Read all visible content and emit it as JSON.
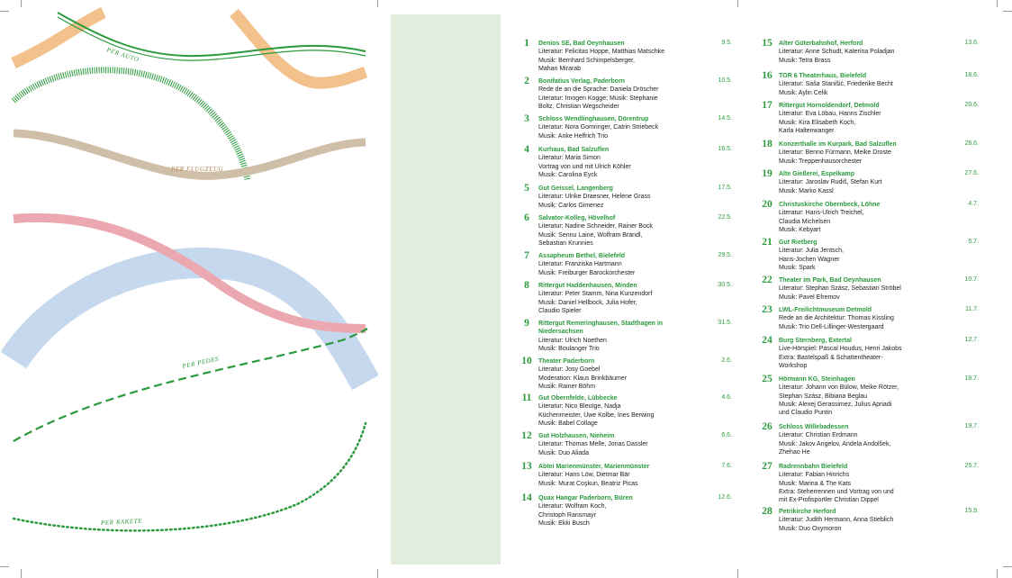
{
  "colors": {
    "accent_green": "#2a9a3c",
    "orange": "#f2c18c",
    "taupe": "#cfbfa8",
    "pink": "#eba8b0",
    "blue": "#c6d8ee",
    "panel": "#e3eddd"
  },
  "routes": {
    "auto": "PER AUTO",
    "flugzeug": "PER FLUGZEUG",
    "pedes": "PER PEDES",
    "rakete": "PER RAKETE"
  },
  "events": [
    {
      "num": "1",
      "venue": "Denios SE, Bad Oeynhausen",
      "date": "9.5.",
      "lines": [
        "Literatur: Felicitas Hoppe, Matthias Matschke",
        "Musik: Bernhard Schimpelsberger,",
        "Mahan Mirarab"
      ]
    },
    {
      "num": "2",
      "venue": "Bonifatius Verlag, Paderborn",
      "date": "10.5.",
      "lines": [
        "Rede de an die Sprache: Daniela Dröscher",
        "Literatur: Imogen Kogge; Musik: Stephanie",
        "Boltz, Christian Wegscheider"
      ]
    },
    {
      "num": "3",
      "venue": "Schloss Wendlinghausen, Dörentrup",
      "date": "14.5.",
      "lines": [
        "Literatur: Nora Gomringer, Catrin Striebeck",
        "Musik: Anke Helfrich Trio"
      ]
    },
    {
      "num": "4",
      "venue": "Kurhaus, Bad Salzuflen",
      "date": "16.5.",
      "lines": [
        "Literatur: Maria Simon",
        "Vortrag von und mit Ulrich Köhler",
        "Musik: Carolina Eyck"
      ]
    },
    {
      "num": "5",
      "venue": "Gut Geissel, Langenberg",
      "date": "17.5.",
      "lines": [
        "Literatur: Ulrike Draesner, Helene Grass",
        "Musik: Carlos Gimenez"
      ]
    },
    {
      "num": "6",
      "venue": "Salvator-Kolleg, Hövelhof",
      "date": "22.5.",
      "lines": [
        "Literatur: Nadine Schneider, Rainer Bock",
        "Musik: Sennu Laine, Wolfram Brandl,",
        "Sebastian Krunnies"
      ]
    },
    {
      "num": "7",
      "venue": "Assapheum Bethel, Bielefeld",
      "date": "29.5.",
      "lines": [
        "Literatur: Franziska Hartmann",
        "Musik: Freiburger Barockorchester"
      ]
    },
    {
      "num": "8",
      "venue": "Rittergut Haddenhausen, Minden",
      "date": "30.5.",
      "lines": [
        "Literatur: Peter Stamm, Nina Kunzendorf",
        "Musik: Daniel Hellbock, Julia Hofer,",
        "Claudio Spieler"
      ]
    },
    {
      "num": "9",
      "venue": "Rittergut Remeringhausen, Stadthagen in Niedersachsen",
      "date": "31.5.",
      "lines": [
        "Literatur: Ulrich Noethen",
        "Musik: Boulanger Trio"
      ]
    },
    {
      "num": "10",
      "venue": "Theater Paderborn",
      "date": "2.6.",
      "lines": [
        "Literatur: Josy Goebel",
        "Moderation: Klaus Brinkbäumer",
        "Musik: Rainer Böhm"
      ]
    },
    {
      "num": "11",
      "venue": "Gut Obernfelde, Lübbecke",
      "date": "4.6.",
      "lines": [
        "Literatur: Nico Bleutge, Nadja",
        "Küchenmeister, Uwe Kolbe, Ines Berwing",
        "Musik: Babel Collage"
      ]
    },
    {
      "num": "12",
      "venue": "Gut Holzhausen, Nieheim",
      "date": "6.6.",
      "lines": [
        "Literatur: Thomas Melle, Jonas Dassler",
        "Musik: Duo Aliada"
      ]
    },
    {
      "num": "13",
      "venue": "Abtei Marienmünster, Marienmünster",
      "date": "7.6.",
      "lines": [
        "Literatur: Hans Löw, Dietmar Bär",
        "Musik: Murat Coşkun, Beatriz Picas"
      ]
    },
    {
      "num": "14",
      "venue": "Quax Hangar Paderborn, Büren",
      "date": "12.6.",
      "lines": [
        "Literatur: Wolfram Koch,",
        "Christoph Ransmayr",
        "Musik: Ekki Busch"
      ]
    },
    {
      "num": "15",
      "venue": "Alter Güterbahnhof, Herford",
      "date": "13.6.",
      "lines": [
        "Literatur: Anne Schudt, Katerina Poladjan",
        "Musik: Tetra Brass"
      ]
    },
    {
      "num": "16",
      "venue": "TOR 6 Theaterhaus, Bielefeld",
      "date": "18.6.",
      "lines": [
        "Literatur: Saša Stanišić, Friederike Becht",
        "Musik: Aylin Celik"
      ]
    },
    {
      "num": "17",
      "venue": "Rittergut Hornoldendorf, Detmold",
      "date": "20.6.",
      "lines": [
        "Literatur: Eva Löbau, Hanns Zischler",
        "Musik: Kira Elisabeth Koch,",
        "Karla Haltenwanger"
      ]
    },
    {
      "num": "18",
      "venue": "Konzerthalle im Kurpark, Bad Salzuflen",
      "date": "26.6.",
      "lines": [
        "Literatur: Benno Fürmann, Meike Droste",
        "Musik: Treppenhausorchester"
      ]
    },
    {
      "num": "19",
      "venue": "Alte Gießerei, Espelkamp",
      "date": "27.6.",
      "lines": [
        "Literatur: Jaroslav Rudiš, Stefan Kurt",
        "Musik: Marko Kassl"
      ]
    },
    {
      "num": "20",
      "venue": "Christuskirche Obernbeck, Löhne",
      "date": "4.7.",
      "lines": [
        "Literatur: Hans-Ulrich Treichel,",
        "Claudia Michelsen",
        "Musik: Kebyart"
      ]
    },
    {
      "num": "21",
      "venue": "Gut Rietberg",
      "date": "5.7.",
      "lines": [
        "Literatur: Julia Jentsch,",
        "Hans-Jochen Wagner",
        "Musik: Spark"
      ]
    },
    {
      "num": "22",
      "venue": "Theater im Park, Bad Oeynhausen",
      "date": "10.7.",
      "lines": [
        "Literatur: Stephan Szász, Sebastian Ströbel",
        "Musik: Pavel Efremov"
      ]
    },
    {
      "num": "23",
      "venue": "LWL-Freilichtmuseum Detmold",
      "date": "11.7.",
      "lines": [
        "Rede an die Architektur: Thomas Kissling",
        "Musik: Trio Dell-Lillinger-Westergaard"
      ]
    },
    {
      "num": "24",
      "venue": "Burg Sternberg, Extertal",
      "date": "12.7.",
      "lines": [
        "Live-Hörspiel: Pascal Houdus, Henri Jakobs",
        "Extra: Bastelspaß & Schattentheater-",
        "Workshop"
      ]
    },
    {
      "num": "25",
      "venue": "Hörmann KG, Steinhagen",
      "date": "18.7.",
      "lines": [
        "Literatur: Johann von Bülow, Meike Rötzer,",
        "Stephan Szász, Bibiana Beglau",
        "Musik: Alexej Gerassimez, Julius Apriadi",
        "und Claudio Puntin"
      ]
    },
    {
      "num": "26",
      "venue": "Schloss Willebadessen",
      "date": "19.7.",
      "lines": [
        "Literatur: Christian Erdmann",
        "Musik: Jakov Angelov, Andela Andolšek,",
        "Zhehao He"
      ]
    },
    {
      "num": "27",
      "venue": "Radrennbahn Bielefeld",
      "date": "25.7.",
      "lines": [
        "Literatur: Fabian Hinrichs",
        "Musik: Marina & The Kats",
        "Extra: Steherrennen und Vortrag von und",
        "mit Ex-Profisportler Christian Dippel"
      ]
    },
    {
      "num": "28",
      "venue": "Petrikirche Herford",
      "date": "15.9.",
      "lines": [
        "Literatur: Judith Hermann, Anna Stieblich",
        "Musik: Duo Oxymoron"
      ]
    }
  ]
}
